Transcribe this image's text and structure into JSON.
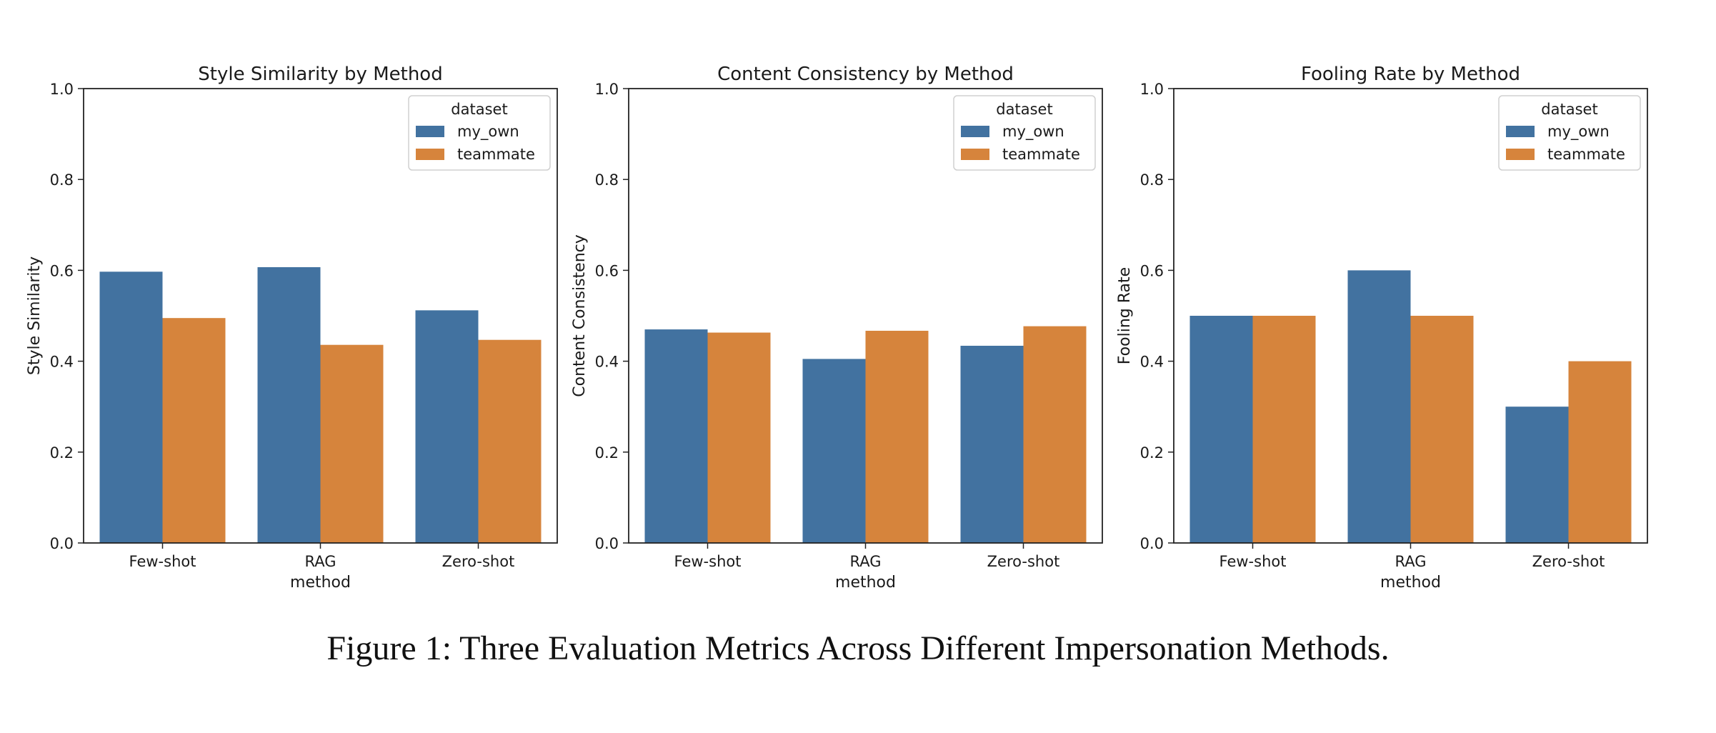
{
  "figure": {
    "caption": "Figure 1: Three Evaluation Metrics Across Different Impersonation Methods."
  },
  "colors": {
    "my_own": "#4272a0",
    "teammate": "#d6843c"
  },
  "chart_data": [
    {
      "type": "bar",
      "title": "Style Similarity by Method",
      "xlabel": "method",
      "ylabel": "Style Similarity",
      "ylim": [
        0,
        1.0
      ],
      "yticks": [
        "0.0",
        "0.2",
        "0.4",
        "0.6",
        "0.8",
        "1.0"
      ],
      "categories": [
        "Few-shot",
        "RAG",
        "Zero-shot"
      ],
      "legend": {
        "title": "dataset",
        "placement": "top-right"
      },
      "series": [
        {
          "name": "my_own",
          "values": [
            0.597,
            0.607,
            0.512
          ]
        },
        {
          "name": "teammate",
          "values": [
            0.495,
            0.436,
            0.447
          ]
        }
      ]
    },
    {
      "type": "bar",
      "title": "Content Consistency by Method",
      "xlabel": "method",
      "ylabel": "Content Consistency",
      "ylim": [
        0,
        1.0
      ],
      "yticks": [
        "0.0",
        "0.2",
        "0.4",
        "0.6",
        "0.8",
        "1.0"
      ],
      "categories": [
        "Few-shot",
        "RAG",
        "Zero-shot"
      ],
      "legend": {
        "title": "dataset",
        "placement": "top-right"
      },
      "series": [
        {
          "name": "my_own",
          "values": [
            0.47,
            0.405,
            0.434
          ]
        },
        {
          "name": "teammate",
          "values": [
            0.463,
            0.467,
            0.477
          ]
        }
      ]
    },
    {
      "type": "bar",
      "title": "Fooling Rate by Method",
      "xlabel": "method",
      "ylabel": "Fooling Rate",
      "ylim": [
        0,
        1.0
      ],
      "yticks": [
        "0.0",
        "0.2",
        "0.4",
        "0.6",
        "0.8",
        "1.0"
      ],
      "categories": [
        "Few-shot",
        "RAG",
        "Zero-shot"
      ],
      "legend": {
        "title": "dataset",
        "placement": "top-right"
      },
      "series": [
        {
          "name": "my_own",
          "values": [
            0.5,
            0.6,
            0.3
          ]
        },
        {
          "name": "teammate",
          "values": [
            0.5,
            0.5,
            0.4
          ]
        }
      ]
    }
  ]
}
